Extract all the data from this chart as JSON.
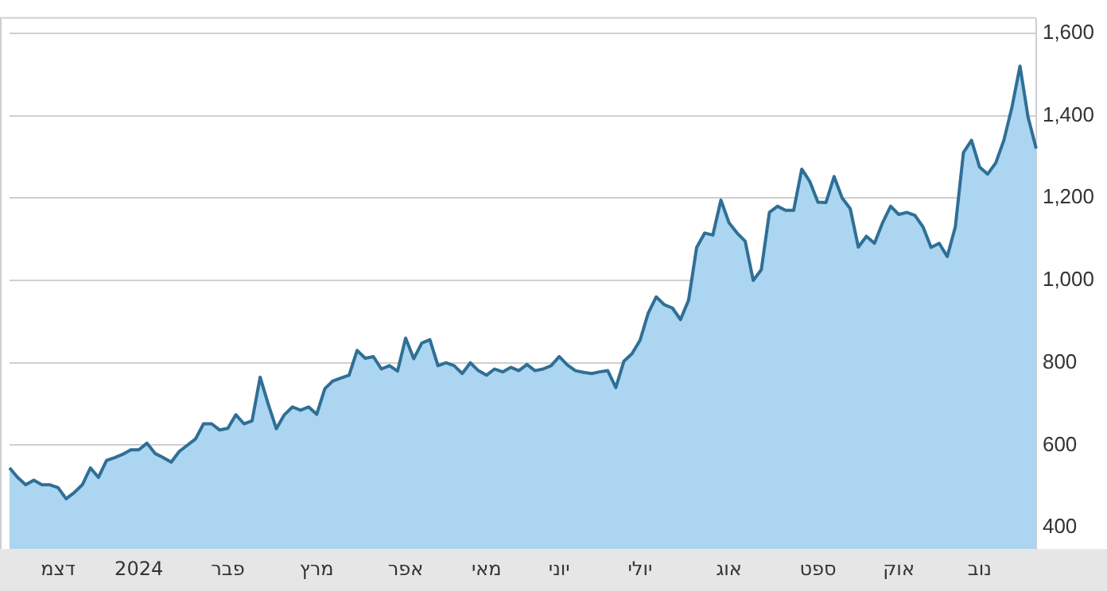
{
  "chart_data": {
    "type": "area",
    "categories": [
      null,
      null,
      null,
      null,
      null,
      null,
      "דצמ",
      null,
      null,
      null,
      null,
      null,
      null,
      null,
      null,
      null,
      "2024",
      null,
      null,
      null,
      null,
      null,
      null,
      null,
      null,
      null,
      null,
      "פבר",
      null,
      null,
      null,
      null,
      null,
      null,
      null,
      null,
      null,
      null,
      "מרץ",
      null,
      null,
      null,
      null,
      null,
      null,
      null,
      null,
      null,
      null,
      "אפר",
      null,
      null,
      null,
      null,
      null,
      null,
      null,
      null,
      null,
      "מאי",
      null,
      null,
      null,
      null,
      null,
      null,
      null,
      null,
      "יוני",
      null,
      null,
      null,
      null,
      null,
      null,
      null,
      null,
      null,
      "יולי",
      null,
      null,
      null,
      null,
      null,
      null,
      null,
      null,
      null,
      null,
      "אוג",
      null,
      null,
      null,
      null,
      null,
      null,
      null,
      null,
      null,
      null,
      "ספט",
      null,
      null,
      null,
      null,
      null,
      null,
      null,
      null,
      null,
      "אוק",
      null,
      null,
      null,
      null,
      null,
      null,
      null,
      null,
      null,
      "נוב",
      null,
      null,
      null,
      null,
      null,
      null,
      null
    ],
    "series": [
      {
        "color": "#2f6f96",
        "values": [
          545,
          522,
          504,
          515,
          504,
          504,
          497,
          470,
          485,
          504,
          545,
          522,
          563,
          570,
          578,
          589,
          589,
          605,
          580,
          570,
          559,
          585,
          600,
          615,
          652,
          652,
          637,
          641,
          674,
          652,
          659,
          765,
          700,
          640,
          674,
          693,
          685,
          693,
          675,
          737,
          756,
          763,
          770,
          830,
          811,
          815,
          785,
          793,
          780,
          860,
          810,
          848,
          856,
          793,
          800,
          793,
          774,
          800,
          781,
          770,
          785,
          778,
          789,
          781,
          796,
          781,
          785,
          793,
          815,
          795,
          781,
          777,
          774,
          778,
          781,
          740,
          804,
          822,
          855,
          920,
          960,
          941,
          933,
          905,
          952,
          1080,
          1115,
          1110,
          1195,
          1140,
          1115,
          1095,
          1000,
          1026,
          1165,
          1180,
          1170,
          1170,
          1270,
          1240,
          1190,
          1189,
          1252,
          1200,
          1174,
          1081,
          1107,
          1090,
          1140,
          1180,
          1160,
          1165,
          1158,
          1130,
          1080,
          1090,
          1058,
          1130,
          1310,
          1340,
          1275,
          1258,
          1285,
          1340,
          1420,
          1520,
          1396,
          1320
        ]
      }
    ],
    "ylim": [
      348,
      1635
    ],
    "yticks": [
      400,
      600,
      800,
      {
        "value": 1000,
        "label": "1,000"
      },
      {
        "value": 1200,
        "label": "1,200"
      },
      {
        "value": 1400,
        "label": "1,400"
      },
      {
        "value": 1600,
        "label": "1,600"
      }
    ],
    "grid": "y",
    "marker": "none",
    "line_style": "solid",
    "legend": false
  }
}
